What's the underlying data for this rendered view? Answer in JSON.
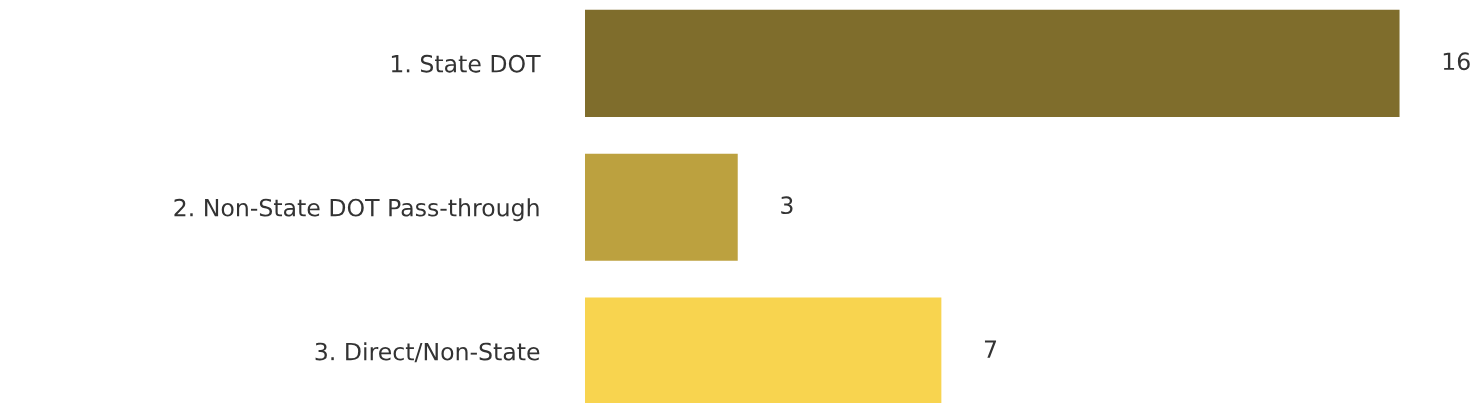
{
  "chart_data": {
    "type": "bar",
    "orientation": "horizontal",
    "categories": [
      "1. State DOT",
      "2. Non-State DOT Pass-through",
      "3. Direct/Non-State"
    ],
    "values": [
      16,
      3,
      7
    ],
    "colors": [
      "#7f6d2c",
      "#bca13f",
      "#f8d44f"
    ],
    "data_labels": true,
    "grid": false,
    "legend": false
  }
}
